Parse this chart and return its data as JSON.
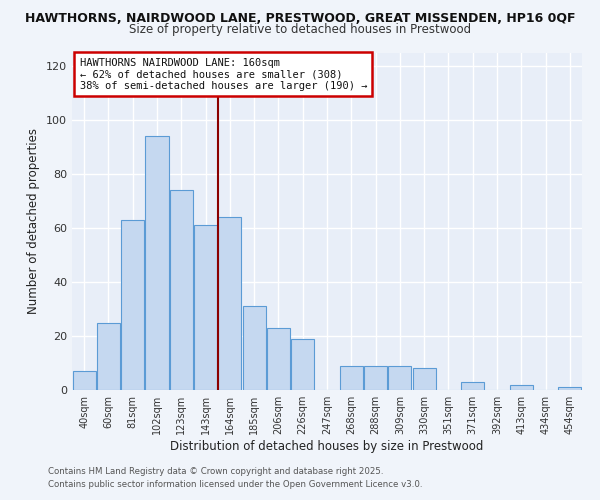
{
  "title_line1": "HAWTHORNS, NAIRDWOOD LANE, PRESTWOOD, GREAT MISSENDEN, HP16 0QF",
  "title_line2": "Size of property relative to detached houses in Prestwood",
  "xlabel": "Distribution of detached houses by size in Prestwood",
  "ylabel": "Number of detached properties",
  "bar_labels": [
    "40sqm",
    "60sqm",
    "81sqm",
    "102sqm",
    "123sqm",
    "143sqm",
    "164sqm",
    "185sqm",
    "206sqm",
    "226sqm",
    "247sqm",
    "268sqm",
    "288sqm",
    "309sqm",
    "330sqm",
    "351sqm",
    "371sqm",
    "392sqm",
    "413sqm",
    "434sqm",
    "454sqm"
  ],
  "bar_values": [
    7,
    25,
    63,
    94,
    74,
    61,
    64,
    31,
    23,
    19,
    0,
    9,
    9,
    9,
    8,
    0,
    3,
    0,
    2,
    0,
    1
  ],
  "bar_color": "#c5d8f0",
  "bar_edgecolor": "#5b9bd5",
  "vline_index": 6,
  "vline_color": "#8b0000",
  "annotation_text": "HAWTHORNS NAIRDWOOD LANE: 160sqm\n← 62% of detached houses are smaller (308)\n38% of semi-detached houses are larger (190) →",
  "annotation_box_color": "#ffffff",
  "annotation_box_edgecolor": "#cc0000",
  "ylim": [
    0,
    125
  ],
  "yticks": [
    0,
    20,
    40,
    60,
    80,
    100,
    120
  ],
  "fig_bg_color": "#f0f4fa",
  "ax_bg_color": "#e8eef8",
  "grid_color": "#ffffff",
  "footer1": "Contains HM Land Registry data © Crown copyright and database right 2025.",
  "footer2": "Contains public sector information licensed under the Open Government Licence v3.0."
}
